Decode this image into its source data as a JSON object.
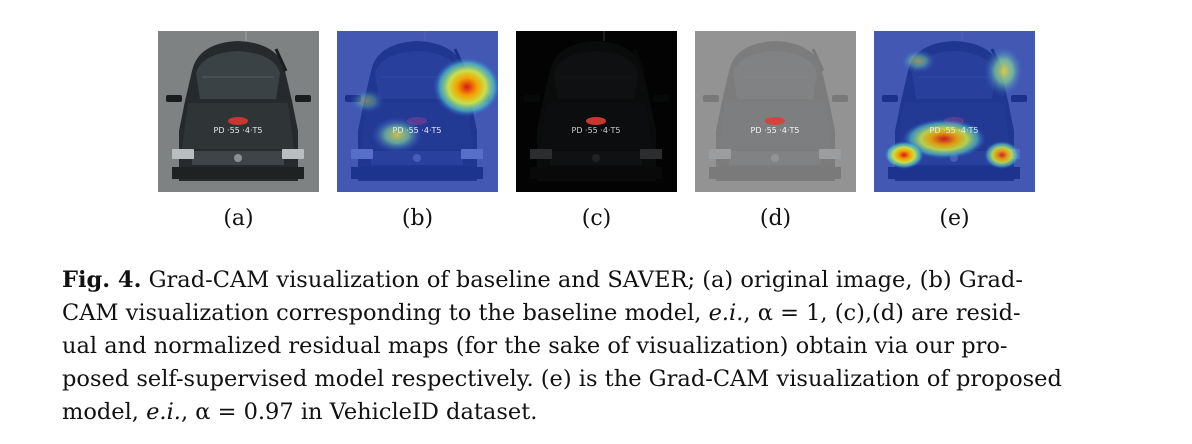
{
  "figure": {
    "panels": [
      {
        "label": "(a)",
        "kind": "original"
      },
      {
        "label": "(b)",
        "kind": "gradcam-baseline"
      },
      {
        "label": "(c)",
        "kind": "residual"
      },
      {
        "label": "(d)",
        "kind": "normalized-residual"
      },
      {
        "label": "(e)",
        "kind": "gradcam-proposed"
      }
    ],
    "plate_text": "PD ·55 ·4·T5",
    "caption": {
      "fig_label": "Fig. 4.",
      "t1": " Grad-CAM visualization of baseline and SAVER; (a) original image, (b) Grad-",
      "t2a": "CAM visualization corresponding to the baseline model, ",
      "ei1": "e.i.",
      "t2b": ", α = 1, (c),(d) are resid-",
      "t3": "ual and normalized residual maps (for the sake of visualization) obtain via our pro-",
      "t4": "posed self-supervised model respectively. (e) is the Grad-CAM visualization of proposed",
      "t5a": "model, ",
      "ei2": "e.i.",
      "t5b": ", α = 0.97 in VehicleID dataset."
    }
  }
}
